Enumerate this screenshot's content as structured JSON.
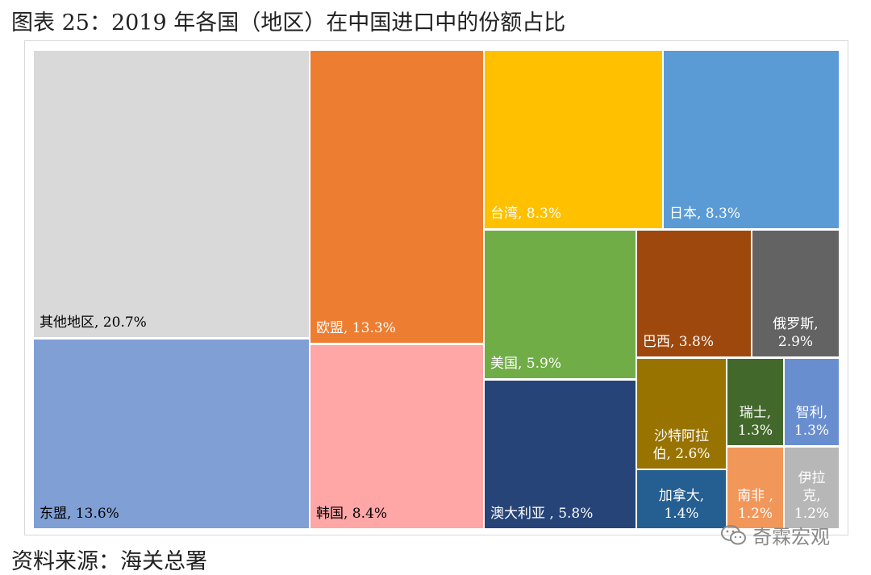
{
  "title": "图表 25：2019 年各国（地区）在中国进口中的份额占比",
  "source": "资料来源：海关总署",
  "watermark": {
    "text": "奇霖宏观",
    "icon": "wechat-icon"
  },
  "chart_data": {
    "type": "treemap",
    "title": "图表 25：2019 年各国（地区）在中国进口中的份额占比",
    "unit": "%",
    "items": [
      {
        "name": "其他地区",
        "value": 20.7,
        "color": "#d9d9d9",
        "text_color": "#000000",
        "label_lines": [
          "其他地区, 20.7%"
        ]
      },
      {
        "name": "东盟",
        "value": 13.6,
        "color": "#7f9fd5",
        "text_color": "#000000",
        "label_lines": [
          "东盟, 13.6%"
        ]
      },
      {
        "name": "欧盟",
        "value": 13.3,
        "color": "#ed7d31",
        "text_color": "#ffffff",
        "label_lines": [
          "欧盟, 13.3%"
        ]
      },
      {
        "name": "韩国",
        "value": 8.4,
        "color": "#ffa6a6",
        "text_color": "#000000",
        "label_lines": [
          "韩国, 8.4%"
        ]
      },
      {
        "name": "台湾",
        "value": 8.3,
        "color": "#ffc000",
        "text_color": "#ffffff",
        "label_lines": [
          "台湾, 8.3%"
        ]
      },
      {
        "name": "日本",
        "value": 8.3,
        "color": "#5b9bd5",
        "text_color": "#ffffff",
        "label_lines": [
          "日本, 8.3%"
        ]
      },
      {
        "name": "美国",
        "value": 5.9,
        "color": "#70ad47",
        "text_color": "#ffffff",
        "label_lines": [
          "美国, 5.9%"
        ]
      },
      {
        "name": "澳大利亚",
        "value": 5.8,
        "color": "#264478",
        "text_color": "#ffffff",
        "label_lines": [
          "澳大利亚 , 5.8%"
        ]
      },
      {
        "name": "巴西",
        "value": 3.8,
        "color": "#9e480e",
        "text_color": "#ffffff",
        "label_lines": [
          "巴西, 3.8%"
        ]
      },
      {
        "name": "俄罗斯",
        "value": 2.9,
        "color": "#636363",
        "text_color": "#ffffff",
        "label_lines": [
          "俄罗斯,",
          "2.9%"
        ]
      },
      {
        "name": "沙特阿拉伯",
        "value": 2.6,
        "color": "#997300",
        "text_color": "#ffffff",
        "label_lines": [
          "沙特阿拉",
          "伯, 2.6%"
        ]
      },
      {
        "name": "加拿大",
        "value": 1.4,
        "color": "#255e91",
        "text_color": "#ffffff",
        "label_lines": [
          "加拿大,",
          "1.4%"
        ]
      },
      {
        "name": "瑞士",
        "value": 1.3,
        "color": "#43682b",
        "text_color": "#ffffff",
        "label_lines": [
          "瑞士,",
          "1.3%"
        ]
      },
      {
        "name": "智利",
        "value": 1.3,
        "color": "#698ed0",
        "text_color": "#ffffff",
        "label_lines": [
          "智利,",
          "1.3%"
        ]
      },
      {
        "name": "南非",
        "value": 1.2,
        "color": "#f1975a",
        "text_color": "#ffffff",
        "label_lines": [
          "南非 ,",
          "1.2%"
        ]
      },
      {
        "name": "伊拉克",
        "value": 1.2,
        "color": "#b7b7b7",
        "text_color": "#ffffff",
        "label_lines": [
          "伊拉",
          "克,",
          "1.2%"
        ]
      }
    ]
  }
}
